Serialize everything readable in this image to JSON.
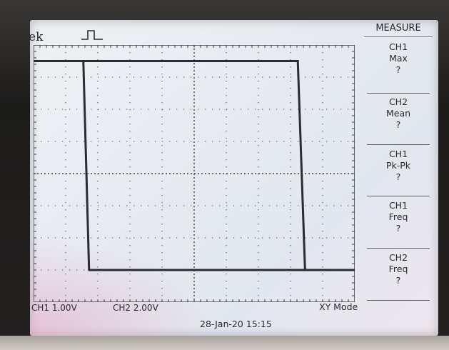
{
  "scope": {
    "brand": "Tek",
    "trigger_icon": "rising-pulse-icon"
  },
  "menu": {
    "title": "MEASURE",
    "items": [
      {
        "source": "CH1",
        "type": "Max",
        "value": "?"
      },
      {
        "source": "CH2",
        "type": "Mean",
        "value": "?"
      },
      {
        "source": "CH1",
        "type": "Pk-Pk",
        "value": "?"
      },
      {
        "source": "CH1",
        "type": "Freq",
        "value": "?"
      },
      {
        "source": "CH2",
        "type": "Freq",
        "value": "?"
      }
    ]
  },
  "status": {
    "ch1_scale": "CH1  1.00V",
    "ch2_scale": "CH2  2.00V",
    "mode": "XY Mode",
    "timestamp": "28-Jan-20 15:15"
  },
  "trace": {
    "color": "#2a2b33",
    "grid_color": "#3d3f46",
    "divisions_x": 10,
    "divisions_y": 8,
    "high_level_div": 3.5,
    "low_level_div": -3.0,
    "fall_time_div": 1.55,
    "rise_time_div": 8.45
  }
}
